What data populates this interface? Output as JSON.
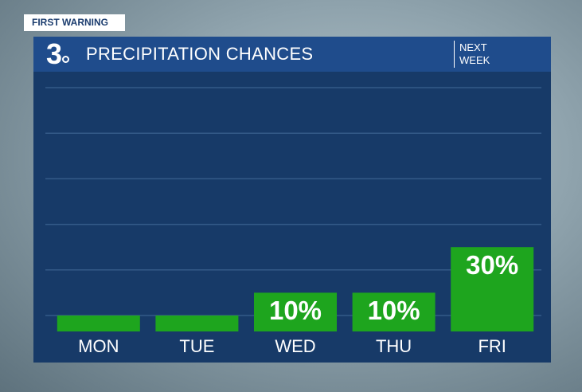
{
  "badge": "FIRST WARNING",
  "logo": "3",
  "chart_data": {
    "type": "bar",
    "title": "PRECIPITATION CHANCES",
    "subtitle": "NEXT WEEK",
    "categories": [
      "MON",
      "TUE",
      "WED",
      "THU",
      "FRI"
    ],
    "values": [
      0,
      0,
      10,
      10,
      30
    ],
    "value_labels": [
      null,
      null,
      "10%",
      "10%",
      "30%"
    ],
    "color": "#1ea51e",
    "ylim": [
      -7,
      100
    ],
    "yticks": [
      0,
      20,
      40,
      60,
      80,
      100
    ],
    "grid": true
  }
}
